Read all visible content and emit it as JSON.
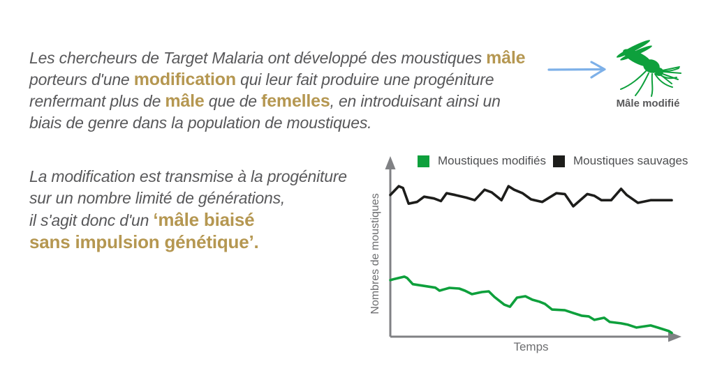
{
  "page": {
    "background": "#ffffff"
  },
  "intro_paragraph": {
    "l1_text": "Les chercheurs de Target Malaria ont développé des moustiques ",
    "l1_gold": "mâle",
    "l2_text_a": "porteurs d'une ",
    "l2_gold": "modification",
    "l2_text_b": " qui leur fait produire une progéniture",
    "l3_text_a": "renfermant plus de ",
    "l3_gold_a": "mâle",
    "l3_text_b": " que de ",
    "l3_gold_b": "femelles",
    "l3_text_c": ", en introduisant ainsi un",
    "l4_text": "biais de genre dans la population de moustiques."
  },
  "modified_male": {
    "label": "Mâle modifié",
    "icon": "mosquito-icon",
    "arrow_icon": "right-arrow-icon"
  },
  "second_paragraph": {
    "l1": "La modification est transmise à la progéniture",
    "l2": "sur un nombre limité de générations,",
    "l3_text": "il s'agit donc d'un ",
    "l3_gold": "‘mâle biaisé",
    "l4_gold": "sans impulsion génétique’."
  },
  "colors": {
    "gold_accent": "#b59751",
    "body_text": "#58585a",
    "modified_green": "#0ea03c",
    "wild_black": "#1d1d1b",
    "axis_gray": "#808184",
    "chart_label_gray": "#6d6e70",
    "legend_text": "#4d4e50",
    "arrow_blue": "#7db0e8"
  },
  "chart_data": {
    "type": "line",
    "title": "",
    "xlabel": "Temps",
    "ylabel": "Nombres de moustiques",
    "grid": false,
    "legend_position": "top",
    "x_axis": {
      "tick_labels": "none",
      "arrow": true,
      "units": "time (qualitative)"
    },
    "y_axis": {
      "tick_labels": "none",
      "arrow": true,
      "units": "population (qualitative % of axis height)"
    },
    "legend": [
      {
        "label": "Moustiques modifiés",
        "color": "#0ea03c"
      },
      {
        "label": "Moustiques sauvages",
        "color": "#1d1d1b"
      }
    ],
    "series": [
      {
        "name": "Moustiques sauvages",
        "color": "#1d1d1b",
        "description": "wild population fluctuates around a constant high level",
        "points": [
          [
            0,
            81
          ],
          [
            3,
            86
          ],
          [
            4.5,
            85
          ],
          [
            6.5,
            76
          ],
          [
            9.5,
            77
          ],
          [
            12,
            80
          ],
          [
            15.5,
            79
          ],
          [
            18,
            77.5
          ],
          [
            20,
            82
          ],
          [
            23,
            81
          ],
          [
            27,
            79.5
          ],
          [
            30,
            78
          ],
          [
            33.5,
            84
          ],
          [
            36,
            82.5
          ],
          [
            39.5,
            78
          ],
          [
            42,
            86
          ],
          [
            44,
            84
          ],
          [
            47,
            82
          ],
          [
            50,
            78.5
          ],
          [
            54,
            77
          ],
          [
            59,
            82
          ],
          [
            62,
            81.5
          ],
          [
            65,
            74.5
          ],
          [
            70,
            81.5
          ],
          [
            72.5,
            80.5
          ],
          [
            75,
            78
          ],
          [
            78.5,
            78
          ],
          [
            82,
            84.5
          ],
          [
            84,
            81
          ],
          [
            88,
            76.5
          ],
          [
            92.5,
            78
          ],
          [
            100,
            78
          ]
        ]
      },
      {
        "name": "Moustiques modifiés",
        "color": "#0ea03c",
        "description": "modified population declines steadily toward zero over limited generations",
        "points": [
          [
            0,
            32.3
          ],
          [
            1.5,
            33
          ],
          [
            5,
            34.3
          ],
          [
            6,
            33.5
          ],
          [
            8,
            30
          ],
          [
            12,
            29
          ],
          [
            16,
            28
          ],
          [
            17.5,
            26.3
          ],
          [
            21,
            27.9
          ],
          [
            24.5,
            27.5
          ],
          [
            26.5,
            26.3
          ],
          [
            29,
            24.3
          ],
          [
            32.5,
            25.5
          ],
          [
            35,
            25.9
          ],
          [
            37,
            22.7
          ],
          [
            40.5,
            18.3
          ],
          [
            42.5,
            17.1
          ],
          [
            45,
            22.3
          ],
          [
            48,
            23.1
          ],
          [
            50.5,
            21.1
          ],
          [
            53,
            20
          ],
          [
            55,
            18.7
          ],
          [
            57.5,
            15.5
          ],
          [
            62,
            15.1
          ],
          [
            65,
            13.5
          ],
          [
            68,
            12
          ],
          [
            70.5,
            11.6
          ],
          [
            72.5,
            9.6
          ],
          [
            76,
            10.8
          ],
          [
            78,
            8.4
          ],
          [
            82,
            7.6
          ],
          [
            84.5,
            6.8
          ],
          [
            87.5,
            5.2
          ],
          [
            92.5,
            6.4
          ],
          [
            95,
            5.2
          ],
          [
            99,
            3.2
          ],
          [
            100,
            2.2
          ]
        ]
      }
    ]
  }
}
